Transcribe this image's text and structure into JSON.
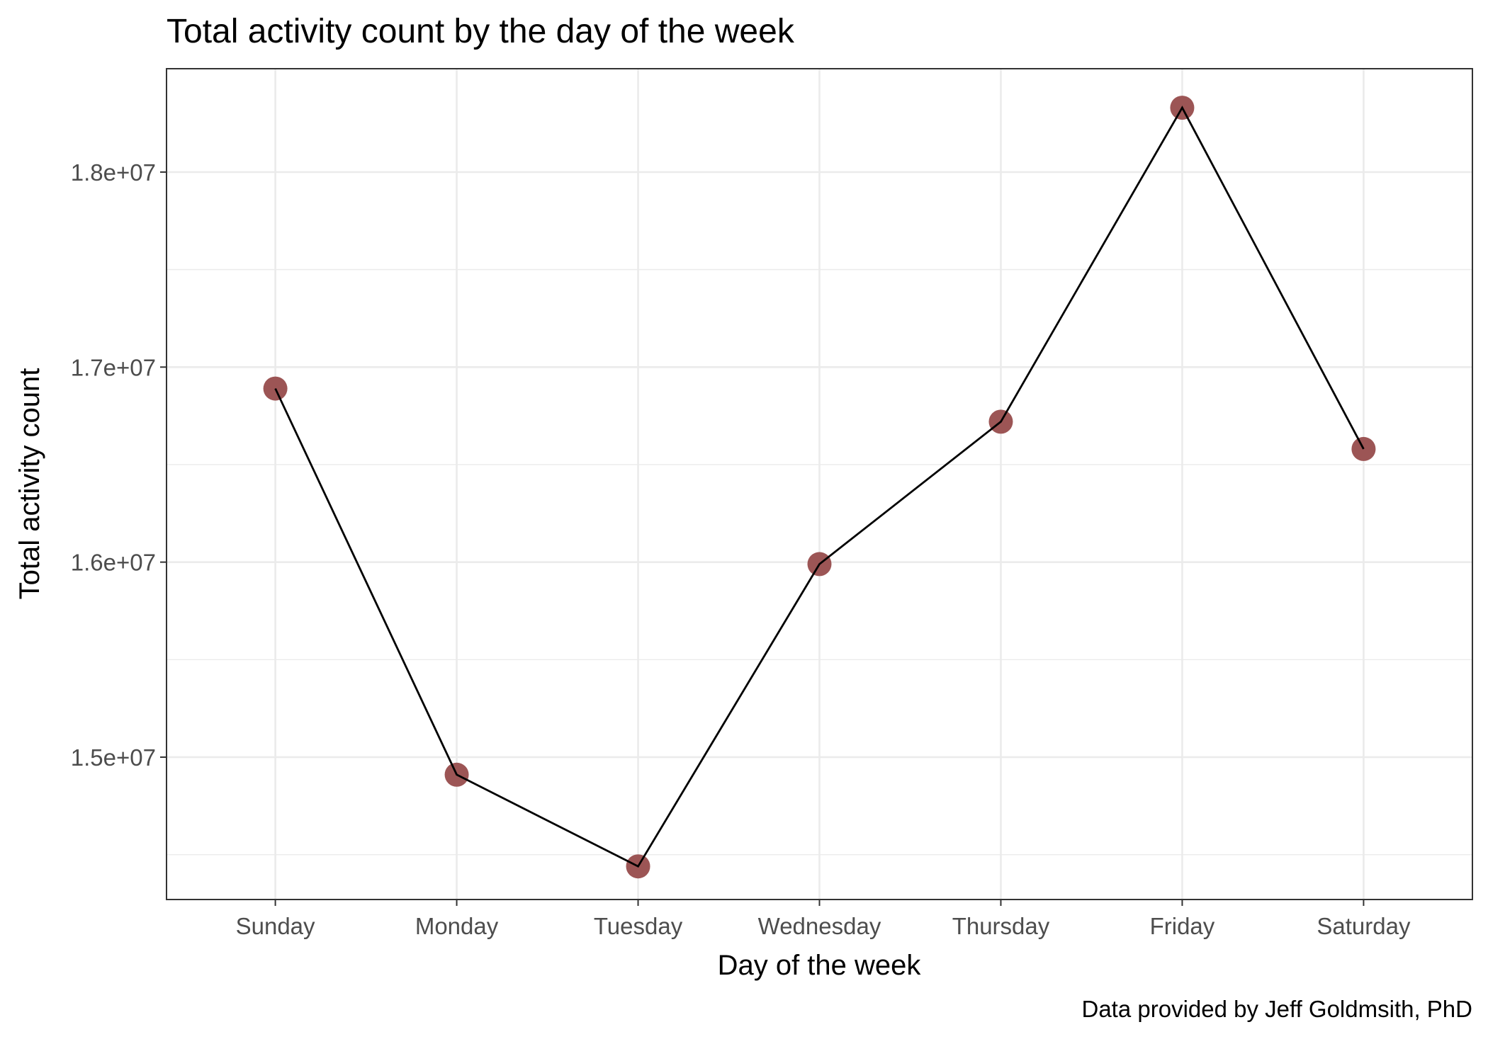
{
  "chart_data": {
    "type": "line",
    "title": "Total activity count by the day of the week",
    "xlabel": "Day of the week",
    "ylabel": "Total activity count",
    "caption": "Data provided by Jeff Goldmsith, PhD",
    "categories": [
      "Sunday",
      "Monday",
      "Tuesday",
      "Wednesday",
      "Thursday",
      "Friday",
      "Saturday"
    ],
    "series": [
      {
        "values": [
          16890000,
          14910000,
          14440000,
          15990000,
          16720000,
          18330000,
          16580000
        ]
      }
    ],
    "ylim": [
      14270000,
      18530000
    ],
    "yticks": [
      15000000,
      16000000,
      17000000,
      18000000
    ],
    "ytick_labels": [
      "1.5e+07",
      "1.6e+07",
      "1.7e+07",
      "1.8e+07"
    ],
    "y_minor_ticks": [
      14500000,
      15500000,
      16500000,
      17500000
    ],
    "grid": true,
    "legend": "none",
    "colors": {
      "point": "#9c5555",
      "line": "#000000",
      "grid": "#ebebeb",
      "border": "#333333"
    }
  }
}
